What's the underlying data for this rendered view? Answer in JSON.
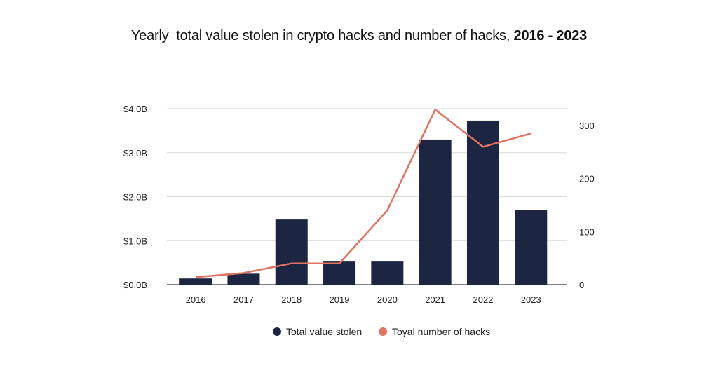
{
  "chart_data": {
    "type": "bar",
    "title": "Yearly  total value stolen in crypto hacks and number of hacks, ",
    "title_bold": "2016 - 2023",
    "categories": [
      "2016",
      "2017",
      "2018",
      "2019",
      "2020",
      "2021",
      "2022",
      "2023"
    ],
    "series": [
      {
        "name": "Total value stolen",
        "type": "bar",
        "axis": "left",
        "color": "#1c2541",
        "values": [
          0.14,
          0.25,
          1.48,
          0.54,
          0.54,
          3.3,
          3.73,
          1.7
        ]
      },
      {
        "name": "Toyal number of hacks",
        "type": "line",
        "axis": "right",
        "color": "#e2735e",
        "values": [
          14,
          22,
          40,
          40,
          140,
          330,
          260,
          285
        ]
      }
    ],
    "y_left": {
      "ylim": [
        0,
        4
      ],
      "ticks": [
        0,
        1,
        2,
        3,
        4
      ],
      "tick_labels": [
        "$0.0B",
        "$1.0B",
        "$2.0B",
        "$3.0B",
        "$4.0B"
      ]
    },
    "y_right": {
      "ylim": [
        0,
        350
      ],
      "ticks": [
        0,
        100,
        200,
        300
      ],
      "tick_labels": [
        "0",
        "100",
        "200",
        "300"
      ]
    },
    "grid": true,
    "legend": "bottom-center"
  }
}
